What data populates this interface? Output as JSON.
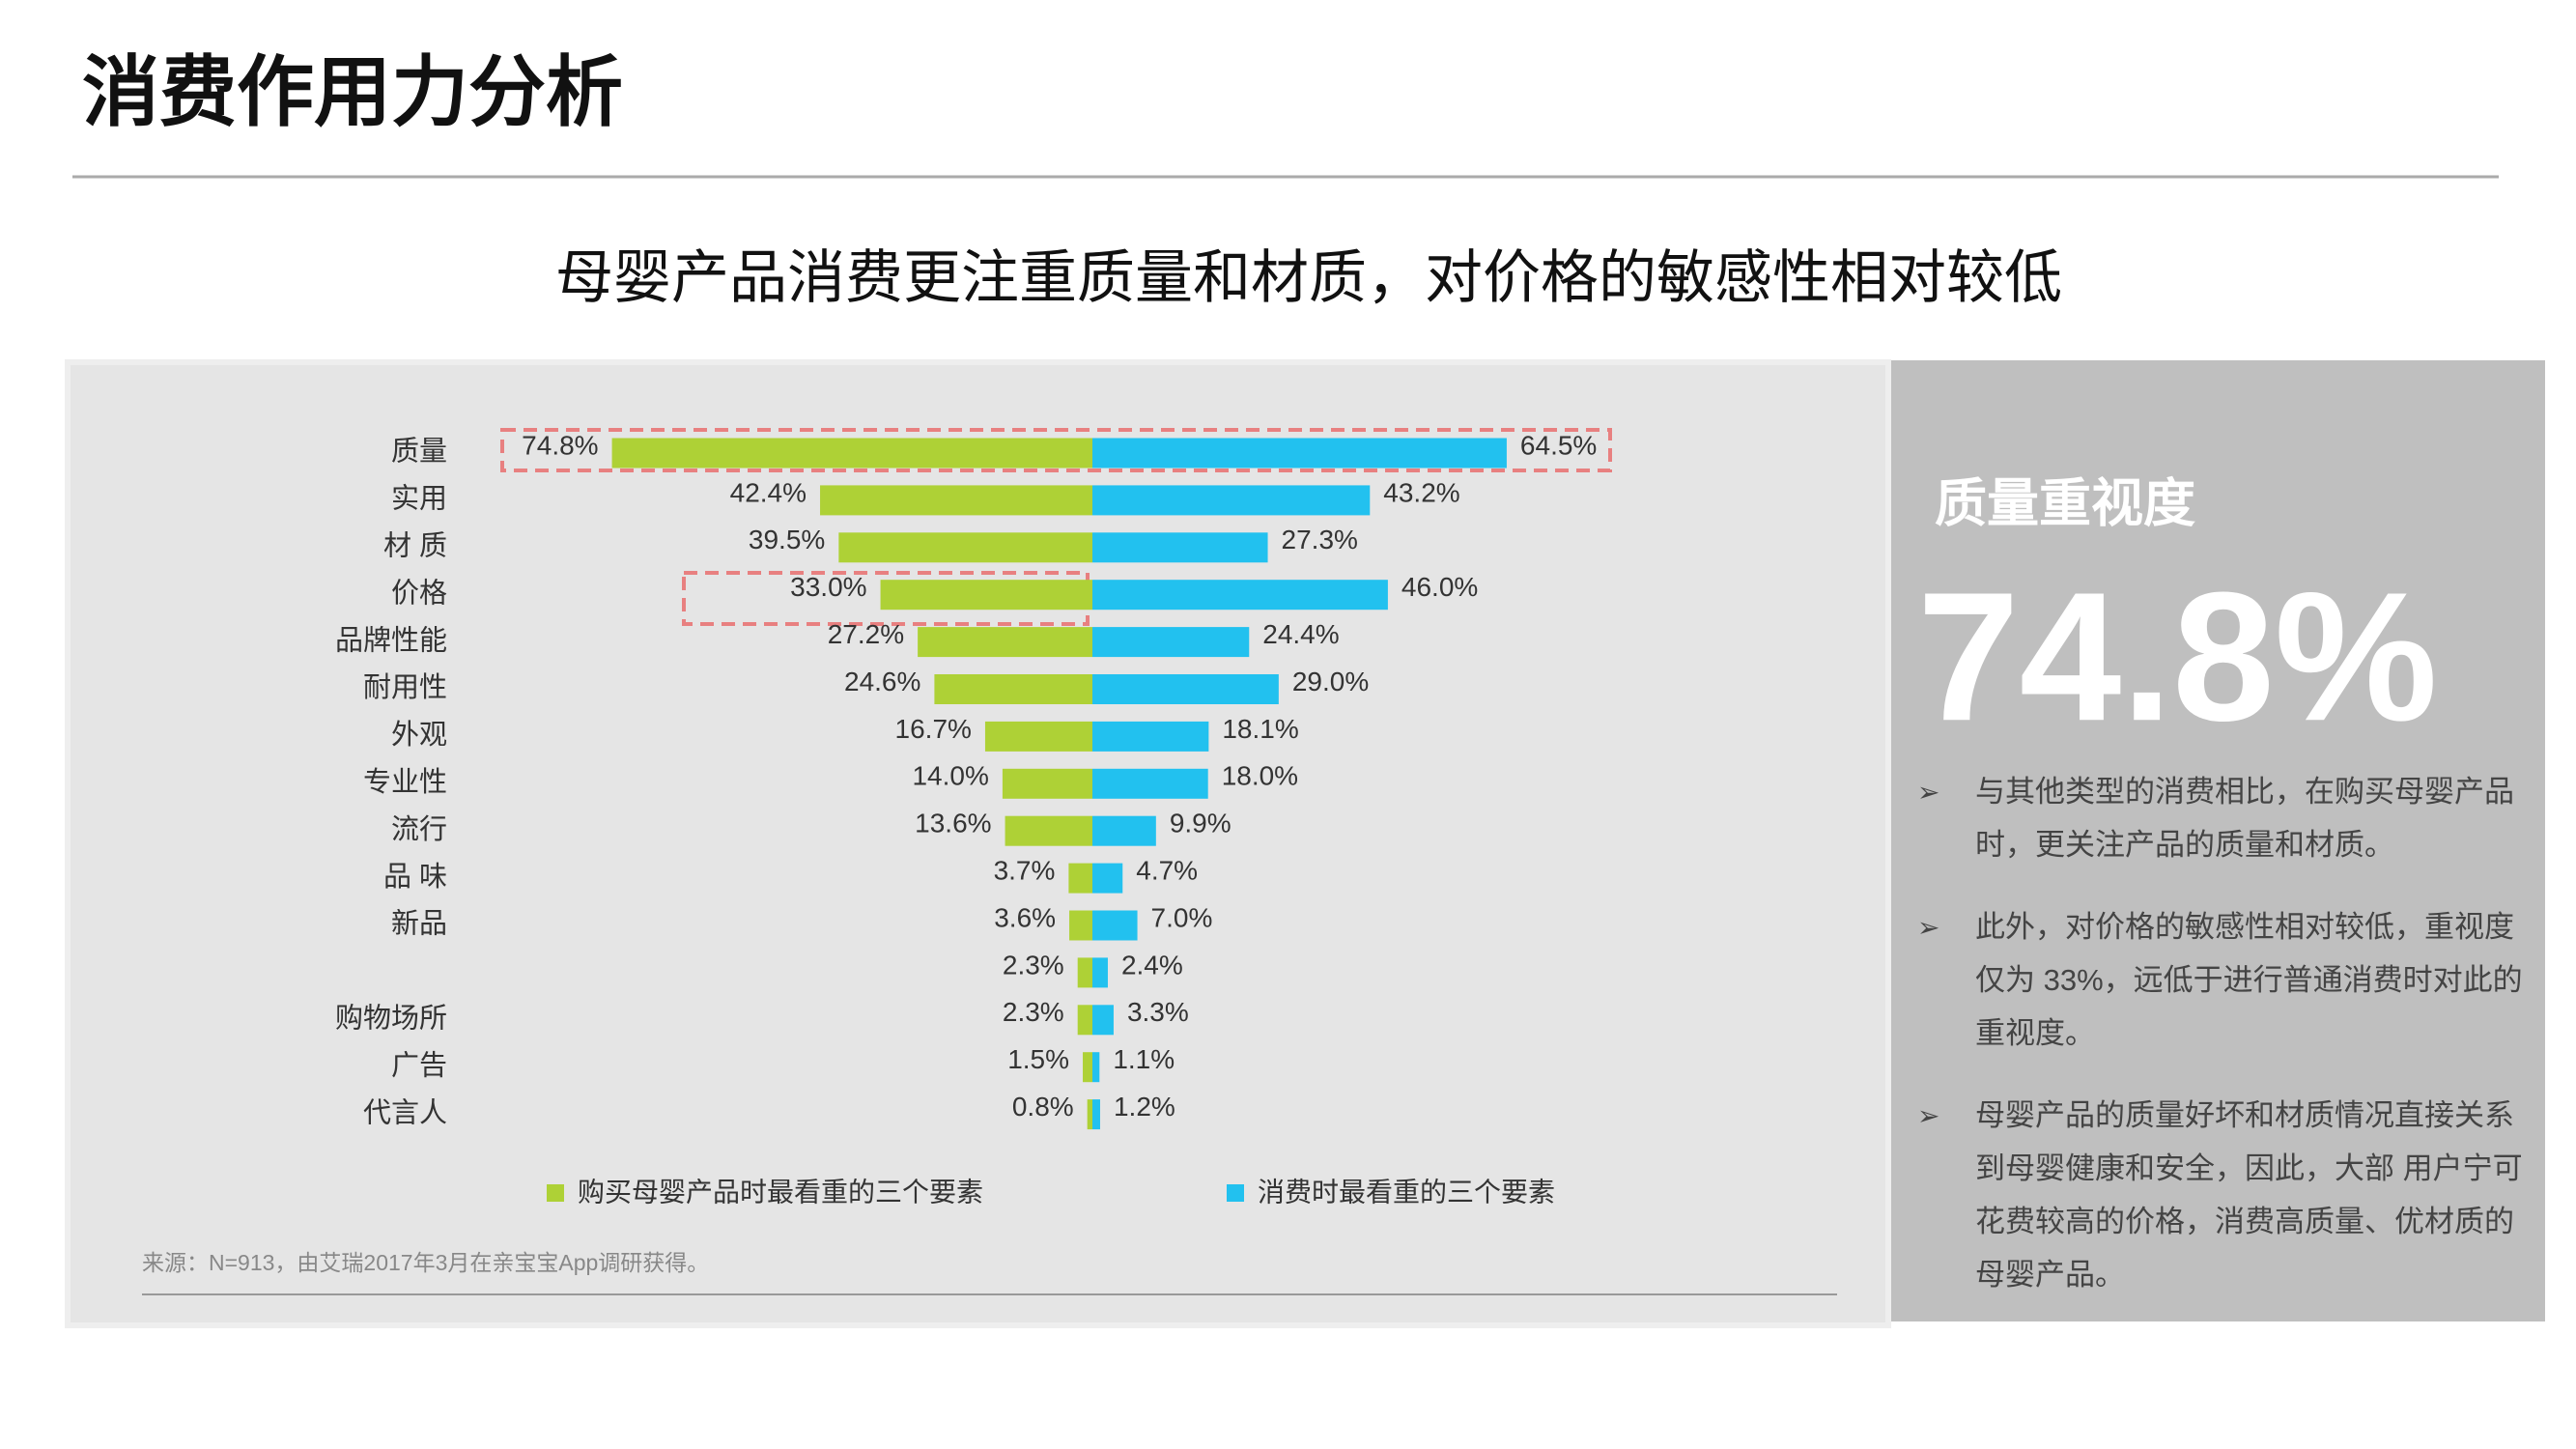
{
  "title": "消费作用力分析",
  "subtitle": "母婴产品消费更注重质量和材质，对价格的敏感性相对较低",
  "chart_data": {
    "type": "butterfly",
    "categories": [
      "质量",
      "实用",
      "材 质",
      "价格",
      "品牌性能",
      "耐用性",
      "外观",
      "专业性",
      "流行",
      "品 味",
      "新品",
      null,
      "购物场所",
      "广告",
      "代言人"
    ],
    "series": [
      {
        "name": "购买母婴产品时最看重的三个要素",
        "color": "#aed136",
        "values": [
          74.8,
          42.4,
          39.5,
          33.0,
          27.2,
          24.6,
          16.7,
          14.0,
          13.6,
          3.7,
          3.6,
          2.3,
          2.3,
          1.5,
          0.8
        ],
        "value_labels": [
          "74.8%",
          "42.4%",
          "39.5%",
          "33.0%",
          "27.2%",
          "24.6%",
          "16.7%",
          "14.0%",
          "13.6%",
          "3.7%",
          "3.6%",
          "2.3%",
          "2.3%",
          "1.5%",
          "0.8%"
        ]
      },
      {
        "name": "消费时最看重的三个要素",
        "color": "#22c1ef",
        "values": [
          64.5,
          43.2,
          27.3,
          46.0,
          24.4,
          29.0,
          18.1,
          18.0,
          9.9,
          4.7,
          7.0,
          2.4,
          3.3,
          1.1,
          1.2
        ],
        "value_labels": [
          "64.5%",
          "43.2%",
          "27.3%",
          "46.0%",
          "24.4%",
          "29.0%",
          "18.1%",
          "18.0%",
          "9.9%",
          "4.7%",
          "7.0%",
          "2.4%",
          "3.3%",
          "1.1%",
          "1.2%"
        ]
      }
    ]
  },
  "source": "来源：N=913，由艾瑞2017年3月在亲宝宝App调研获得。",
  "panel": {
    "heading": "质量重视度",
    "big_number": "74.8%",
    "bullets": [
      [
        "与其他类型的消费相比，在购买母婴产品",
        "时，更关注产品的质量和材质。"
      ],
      [
        "此外，对价格的敏感性相对较低，重视度",
        "仅为 33%，远低于进行普通消费时对此的",
        "重视度。"
      ],
      [
        "母婴产品的质量好坏和材质情况直接关系",
        "到母婴健康和安全，因此，大部 用户宁可",
        "花费较高的价格，消费高质量、优材质的",
        "母婴产品。"
      ]
    ]
  }
}
